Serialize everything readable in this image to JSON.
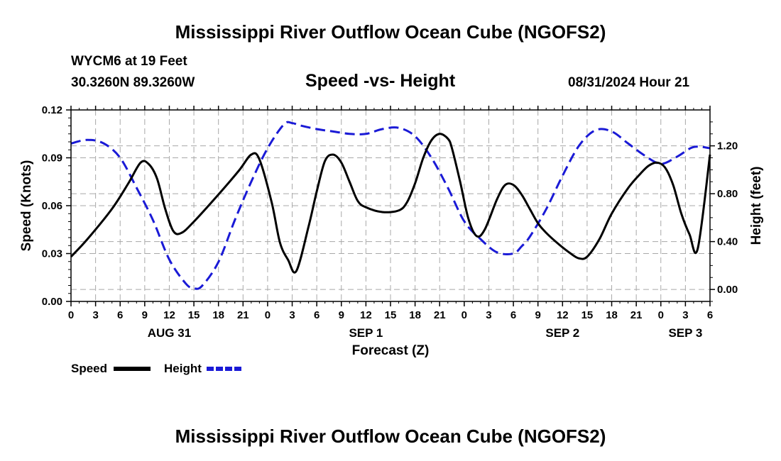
{
  "header": {
    "title": "Mississippi River Outflow Ocean Cube (NGOFS2)",
    "station": "WYCM6 at 19 Feet",
    "coords": "30.3260N  89.3260W",
    "subtitle": "Speed -vs- Height",
    "datetime": "08/31/2024 Hour 21"
  },
  "footer": {
    "title": "Mississippi River Outflow Ocean Cube (NGOFS2)"
  },
  "chart_data": {
    "type": "line",
    "title": "Speed -vs- Height",
    "xlabel": "Forecast (Z)",
    "ylabel": "Speed (Knots)",
    "y2label": "Height (feet)",
    "xlim": [
      0,
      78
    ],
    "ylim": [
      0,
      0.12
    ],
    "y2lim": [
      -0.1,
      1.5
    ],
    "grid": true,
    "x_ticks": [
      0,
      3,
      6,
      9,
      12,
      15,
      18,
      21,
      24,
      27,
      30,
      33,
      36,
      39,
      42,
      45,
      48,
      51,
      54,
      57,
      60,
      63,
      66,
      69,
      72,
      75,
      78
    ],
    "x_tick_labels": [
      "0",
      "3",
      "6",
      "9",
      "12",
      "15",
      "18",
      "21",
      "0",
      "3",
      "6",
      "9",
      "12",
      "15",
      "18",
      "21",
      "0",
      "3",
      "6",
      "9",
      "12",
      "15",
      "18",
      "21",
      "0",
      "3",
      "6"
    ],
    "date_labels": [
      {
        "x": 12,
        "label": "AUG 31"
      },
      {
        "x": 36,
        "label": "SEP 1"
      },
      {
        "x": 60,
        "label": "SEP 2"
      },
      {
        "x": 75,
        "label": "SEP 3"
      }
    ],
    "y_ticks": [
      0,
      0.03,
      0.06,
      0.09,
      0.12
    ],
    "y_tick_labels": [
      "0.00",
      "0.03",
      "0.06",
      "0.09",
      "0.12"
    ],
    "y2_ticks": [
      0,
      0.4,
      0.8,
      1.2
    ],
    "y2_tick_labels": [
      "0.00",
      "0.40",
      "0.80",
      "1.20"
    ],
    "series": [
      {
        "name": "Speed",
        "axis": "left",
        "color": "#000000",
        "dash": "solid",
        "x": [
          0,
          2,
          5,
          7,
          8.5,
          9.5,
          10.5,
          11.5,
          12.5,
          13.5,
          15,
          18,
          20.5,
          22,
          23,
          24.5,
          25.5,
          26.5,
          27.5,
          29,
          30,
          31,
          32,
          33,
          34,
          35,
          36,
          38,
          40,
          41,
          42,
          43,
          44,
          45,
          46,
          46.5,
          47.5,
          48.5,
          49.5,
          50.5,
          52,
          53,
          54,
          55,
          56,
          57,
          58,
          59.5,
          61,
          62,
          63,
          64.5,
          66,
          68,
          69.5,
          70.5,
          71.5,
          72.5,
          73.5,
          74.5,
          75.5,
          76.5,
          78
        ],
        "values": [
          0.028,
          0.039,
          0.058,
          0.074,
          0.087,
          0.086,
          0.077,
          0.058,
          0.044,
          0.043,
          0.05,
          0.067,
          0.082,
          0.092,
          0.089,
          0.062,
          0.037,
          0.026,
          0.019,
          0.047,
          0.069,
          0.088,
          0.092,
          0.087,
          0.075,
          0.063,
          0.059,
          0.056,
          0.057,
          0.062,
          0.074,
          0.09,
          0.101,
          0.105,
          0.102,
          0.096,
          0.075,
          0.052,
          0.041,
          0.045,
          0.064,
          0.073,
          0.073,
          0.067,
          0.058,
          0.049,
          0.043,
          0.036,
          0.03,
          0.027,
          0.028,
          0.039,
          0.055,
          0.071,
          0.08,
          0.085,
          0.087,
          0.084,
          0.073,
          0.055,
          0.042,
          0.033,
          0.092
        ]
      },
      {
        "name": "Height",
        "axis": "right",
        "color": "#1a1ad6",
        "dash": "dashed",
        "x": [
          0,
          2,
          4,
          6,
          8,
          10,
          12,
          14,
          15,
          16,
          18,
          20,
          22,
          24,
          26,
          27,
          28,
          30,
          32,
          34,
          36,
          38,
          40,
          42,
          44,
          46,
          48,
          50,
          52,
          54,
          55,
          56,
          58,
          60,
          62,
          64,
          66,
          68,
          70,
          72,
          74,
          76,
          78
        ],
        "values": [
          1.22,
          1.25,
          1.22,
          1.1,
          0.85,
          0.58,
          0.25,
          0.05,
          0.01,
          0.03,
          0.23,
          0.58,
          0.9,
          1.18,
          1.38,
          1.39,
          1.37,
          1.34,
          1.32,
          1.3,
          1.3,
          1.34,
          1.35,
          1.28,
          1.1,
          0.85,
          0.57,
          0.42,
          0.31,
          0.3,
          0.36,
          0.44,
          0.67,
          0.95,
          1.2,
          1.33,
          1.32,
          1.22,
          1.12,
          1.05,
          1.11,
          1.19,
          1.18
        ]
      }
    ],
    "legend": [
      {
        "label": "Speed",
        "color": "#000000",
        "dash": "solid"
      },
      {
        "label": "Height",
        "color": "#1a1ad6",
        "dash": "dashed"
      }
    ],
    "legend_position": "bottom-left"
  }
}
